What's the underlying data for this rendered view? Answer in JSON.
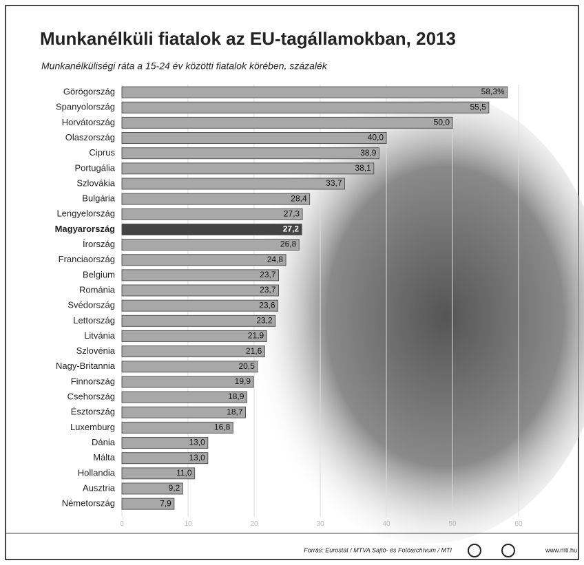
{
  "chart_data": {
    "type": "hbar",
    "title": "Munkanélküli fiatalok az EU-tagállamokban, 2013",
    "subtitle": "Munkanélküliségi ráta a 15-24 év közötti fiatalok körében, százalék",
    "categories": [
      "Görögország",
      "Spanyolország",
      "Horvátország",
      "Olaszország",
      "Ciprus",
      "Portugália",
      "Szlovákia",
      "Bulgária",
      "Lengyelország",
      "Magyarország",
      "Írország",
      "Franciaország",
      "Belgium",
      "Románia",
      "Svédország",
      "Lettország",
      "Litvánia",
      "Szlovénia",
      "Nagy-Britannia",
      "Finnország",
      "Csehország",
      "Észtország",
      "Luxemburg",
      "Dánia",
      "Málta",
      "Hollandia",
      "Ausztria",
      "Németország"
    ],
    "values": [
      58.3,
      55.5,
      50.0,
      40.0,
      38.9,
      38.1,
      33.7,
      28.4,
      27.3,
      27.2,
      26.8,
      24.8,
      23.7,
      23.7,
      23.6,
      23.2,
      21.9,
      21.6,
      20.5,
      19.9,
      18.9,
      18.7,
      16.8,
      13.0,
      13.0,
      11.0,
      9.2,
      7.9
    ],
    "value_labels": [
      "58,3%",
      "55,5",
      "50,0",
      "40,0",
      "38,9",
      "38,1",
      "33,7",
      "28,4",
      "27,3",
      "27,2",
      "26,8",
      "24,8",
      "23,7",
      "23,7",
      "23,6",
      "23,2",
      "21,9",
      "21,6",
      "20,5",
      "19,9",
      "18,9",
      "18,7",
      "16,8",
      "13,0",
      "13,0",
      "11,0",
      "9,2",
      "7,9"
    ],
    "colors": [
      "#a8a8a8",
      "#a8a8a8",
      "#a8a8a8",
      "#a8a8a8",
      "#a8a8a8",
      "#a8a8a8",
      "#a8a8a8",
      "#a8a8a8",
      "#a8a8a8",
      "#444444",
      "#a8a8a8",
      "#a8a8a8",
      "#a8a8a8",
      "#a8a8a8",
      "#a8a8a8",
      "#a8a8a8",
      "#a8a8a8",
      "#a8a8a8",
      "#a8a8a8",
      "#a8a8a8",
      "#a8a8a8",
      "#a8a8a8",
      "#a8a8a8",
      "#a8a8a8",
      "#a8a8a8",
      "#a8a8a8",
      "#a8a8a8",
      "#a8a8a8"
    ],
    "xlim": [
      0,
      60
    ],
    "xticks": [
      0,
      10,
      20,
      30,
      40,
      50,
      60
    ],
    "grid": true,
    "source": "Forrás: Eurostat / MTVA Sajtó- és Fotóarchívum / MTI",
    "url": "www.mti.hu"
  }
}
